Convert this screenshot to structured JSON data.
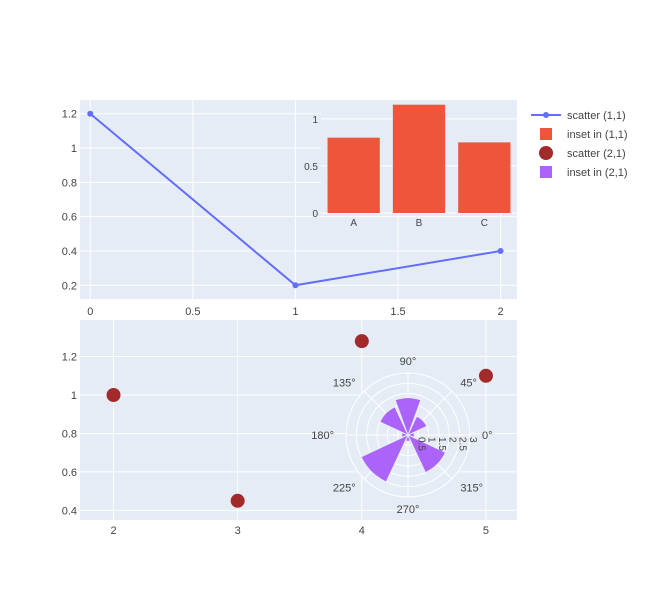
{
  "chart_data": [
    {
      "type": "line",
      "name": "scatter (1,1)",
      "x": [
        0,
        1,
        2
      ],
      "y": [
        1.2,
        0.2,
        0.4
      ],
      "xlim": [
        -0.05,
        2.08
      ],
      "ylim": [
        0.12,
        1.28
      ],
      "xticks": [
        0,
        0.5,
        1,
        1.5,
        2
      ],
      "yticks": [
        0.2,
        0.4,
        0.6,
        0.8,
        1,
        1.2
      ],
      "xtick_labels": [
        "0",
        "0.5",
        "1",
        "1.5",
        "2"
      ],
      "ytick_labels": [
        "0.2",
        "0.4",
        "0.6",
        "0.8",
        "1",
        "1.2"
      ],
      "color": "#636efa",
      "grid": true
    },
    {
      "type": "bar",
      "name": "inset in (1,1)",
      "categories": [
        "A",
        "B",
        "C"
      ],
      "values": [
        0.8,
        1.15,
        0.75
      ],
      "ylim": [
        0,
        1.2
      ],
      "yticks": [
        0,
        0.5,
        1
      ],
      "ytick_labels": [
        "0",
        "0.5",
        "1"
      ],
      "color": "#ef553b",
      "grid": true
    },
    {
      "type": "scatter",
      "name": "scatter (2,1)",
      "x": [
        2,
        3,
        4,
        5
      ],
      "y": [
        1.0,
        0.45,
        1.28,
        1.1
      ],
      "xlim": [
        1.73,
        5.25
      ],
      "ylim": [
        0.35,
        1.39
      ],
      "xticks": [
        2,
        3,
        4,
        5
      ],
      "yticks": [
        0.4,
        0.6,
        0.8,
        1,
        1.2
      ],
      "xtick_labels": [
        "2",
        "3",
        "4",
        "5"
      ],
      "ytick_labels": [
        "0.4",
        "0.6",
        "0.8",
        "1",
        "1.2"
      ],
      "color": "#a32a2a",
      "grid": true
    },
    {
      "type": "barpolar",
      "name": "inset in (2,1)",
      "theta": [
        45,
        90,
        135,
        180,
        225,
        270,
        315,
        360
      ],
      "r": [
        1,
        1.8,
        1.5,
        0.3,
        2.5,
        0.3,
        2,
        0.3
      ],
      "width": 40,
      "radial_max": 3,
      "radial_ticks": [
        0.5,
        1,
        1.5,
        2,
        2.5,
        3
      ],
      "radial_tick_labels": [
        "0.5",
        "1",
        "1.5",
        "2",
        "2.5",
        "3"
      ],
      "angular_ticks": [
        0,
        45,
        90,
        135,
        180,
        225,
        270,
        315
      ],
      "angular_tick_labels": [
        "0°",
        "45°",
        "90°",
        "135°",
        "180°",
        "225°",
        "270°",
        "315°"
      ],
      "color": "#ab63fa"
    }
  ],
  "legend": {
    "placement": "right",
    "items": [
      {
        "label": "scatter (1,1)",
        "symbol": "line-marker",
        "color": "#636efa"
      },
      {
        "label": "inset in (1,1)",
        "symbol": "square",
        "color": "#ef553b"
      },
      {
        "label": "scatter (2,1)",
        "symbol": "circle",
        "color": "#a32a2a"
      },
      {
        "label": "inset in (2,1)",
        "symbol": "square",
        "color": "#ab63fa"
      }
    ]
  },
  "colors": {
    "plot_bg": "#e5ecf6",
    "grid": "#ffffff",
    "text": "#444444"
  }
}
